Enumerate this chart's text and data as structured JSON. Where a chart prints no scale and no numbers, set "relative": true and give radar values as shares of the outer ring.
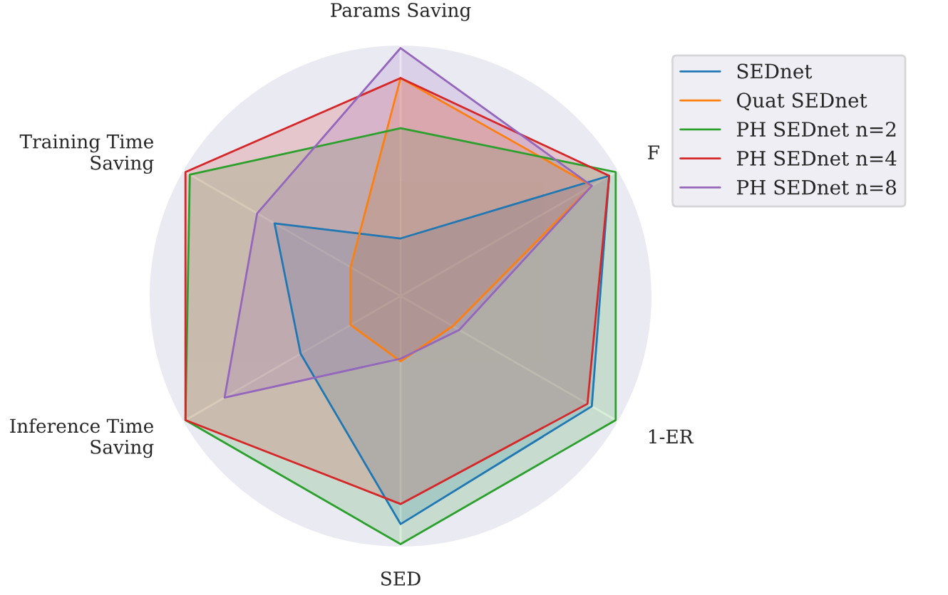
{
  "chart_data": {
    "type": "radar",
    "relative": true,
    "grid": "x",
    "legend": "top right",
    "categories": [
      "Params Saving",
      "F",
      "1-ER",
      "SED",
      "Inference Time\nSaving",
      "Training Time\nSaving"
    ],
    "series": [
      {
        "name": "SEDnet",
        "color": "#1f77b4",
        "values": [
          0.23,
          0.96,
          0.88,
          0.91,
          0.46,
          0.58
        ]
      },
      {
        "name": "Quat SEDnet",
        "color": "#ff7f0e",
        "values": [
          0.87,
          0.88,
          0.24,
          0.26,
          0.23,
          0.23
        ]
      },
      {
        "name": "PH SEDnet n=2",
        "color": "#2ca02c",
        "values": [
          0.67,
          0.99,
          0.99,
          0.99,
          0.99,
          0.97
        ]
      },
      {
        "name": "PH SEDnet n=4",
        "color": "#d62728",
        "values": [
          0.87,
          0.96,
          0.86,
          0.83,
          0.99,
          0.99
        ]
      },
      {
        "name": "PH SEDnet n=8",
        "color": "#9467bd",
        "values": [
          0.99,
          0.88,
          0.27,
          0.25,
          0.81,
          0.66
        ]
      }
    ]
  }
}
